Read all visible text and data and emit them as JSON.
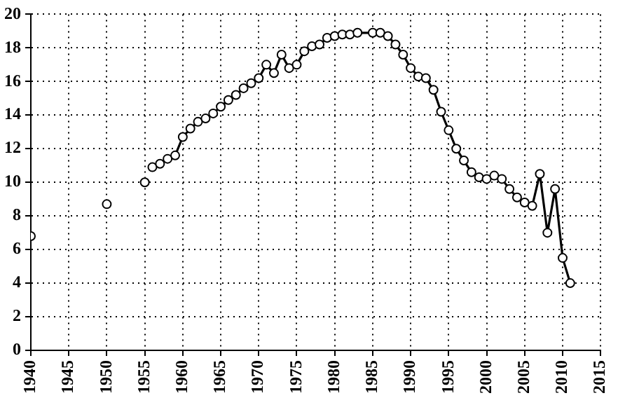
{
  "chart_data": {
    "type": "line",
    "xlim": [
      1940,
      2015
    ],
    "xticks": [
      1940,
      1945,
      1950,
      1955,
      1960,
      1965,
      1970,
      1975,
      1980,
      1985,
      1990,
      1995,
      2000,
      2005,
      2010,
      2015
    ],
    "ylim": [
      0,
      20
    ],
    "yticks": [
      0,
      2,
      4,
      6,
      8,
      10,
      12,
      14,
      16,
      18,
      20
    ],
    "grid": true,
    "legend": false,
    "marker": "circle",
    "line_style": "solid",
    "series": [
      {
        "type": "scatter",
        "color": "#000000",
        "x": [
          1940,
          1950,
          1955
        ],
        "values": [
          6.8,
          8.7,
          10.0
        ]
      },
      {
        "type": "line",
        "color": "#000000",
        "x": [
          1956,
          1957,
          1958,
          1959,
          1960,
          1961,
          1962,
          1963,
          1964,
          1965,
          1966,
          1967,
          1968,
          1969,
          1970,
          1971,
          1972,
          1973,
          1974,
          1975,
          1976,
          1977,
          1978,
          1979,
          1980,
          1981,
          1982,
          1983,
          1985,
          1986,
          1987,
          1988,
          1989,
          1990,
          1991,
          1992,
          1993,
          1994,
          1995,
          1996,
          1997,
          1998,
          1999,
          2000,
          2001,
          2002,
          2003,
          2004,
          2005,
          2006,
          2007,
          2008,
          2009,
          2010,
          2011
        ],
        "values": [
          10.9,
          11.1,
          11.4,
          11.6,
          12.7,
          13.2,
          13.6,
          13.8,
          14.1,
          14.5,
          14.9,
          15.2,
          15.6,
          15.9,
          16.2,
          17.0,
          16.5,
          17.6,
          16.8,
          17.0,
          17.8,
          18.1,
          18.2,
          18.6,
          18.7,
          18.8,
          18.8,
          18.9,
          18.9,
          18.9,
          18.7,
          18.2,
          17.6,
          16.8,
          16.3,
          16.2,
          15.5,
          14.2,
          13.1,
          12.0,
          11.3,
          10.6,
          10.3,
          10.2,
          10.4,
          10.2,
          9.6,
          9.1,
          8.8,
          8.6,
          10.5,
          7.0,
          9.6,
          5.5,
          4.0
        ]
      }
    ]
  }
}
